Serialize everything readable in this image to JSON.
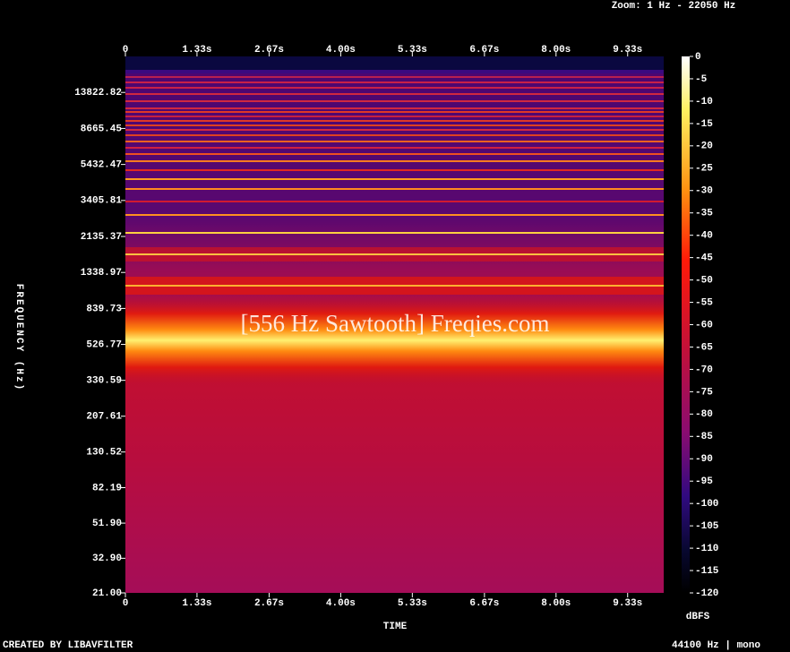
{
  "chart_data": {
    "type": "spectrogram",
    "title": "[556 Hz Sawtooth] Freqies.com",
    "subtitle": "Zoom: 1 Hz - 22050 Hz",
    "xlabel": "TIME",
    "ylabel": "FREQUENCY (Hz)",
    "colorbar_label": "dBFS",
    "footer_left": "CREATED BY LIBAVFILTER",
    "footer_right": "44100 Hz | mono",
    "xlim": [
      0,
      10
    ],
    "xticks": [
      0,
      {
        "value": 1.33,
        "label": "1.33s"
      },
      {
        "value": 2.67,
        "label": "2.67s"
      },
      {
        "value": 4,
        "label": "4.00s"
      },
      {
        "value": 5.33,
        "label": "5.33s"
      },
      {
        "value": 6.67,
        "label": "6.67s"
      },
      {
        "value": 8,
        "label": "8.00s"
      },
      {
        "value": 9.33,
        "label": "9.33s"
      }
    ],
    "ylim": [
      21,
      22050
    ],
    "yscale": "log",
    "yticks": [
      {
        "value": 21,
        "label": "21.00"
      },
      {
        "value": 32.9,
        "label": "32.90"
      },
      {
        "value": 51.9,
        "label": "51.90"
      },
      {
        "value": 82.19,
        "label": "82.19"
      },
      {
        "value": 130.52,
        "label": "130.52"
      },
      {
        "value": 207.61,
        "label": "207.61"
      },
      {
        "value": 330.59,
        "label": "330.59"
      },
      {
        "value": 526.77,
        "label": "526.77"
      },
      {
        "value": 839.73,
        "label": "839.73"
      },
      {
        "value": 1338.97,
        "label": "1338.97"
      },
      {
        "value": 2135.37,
        "label": "2135.37"
      },
      {
        "value": 3405.81,
        "label": "3405.81"
      },
      {
        "value": 5432.47,
        "label": "5432.47"
      },
      {
        "value": 8665.45,
        "label": "8665.45"
      },
      {
        "value": 13822.82,
        "label": "13822.82"
      }
    ],
    "clim": [
      -120,
      0
    ],
    "cticks": [
      0,
      -5,
      -10,
      -15,
      -20,
      -25,
      -30,
      -35,
      -40,
      -45,
      -50,
      -55,
      -60,
      -65,
      -70,
      -75,
      -80,
      -85,
      -90,
      -95,
      -100,
      -105,
      -110,
      -115,
      -120
    ]
  }
}
